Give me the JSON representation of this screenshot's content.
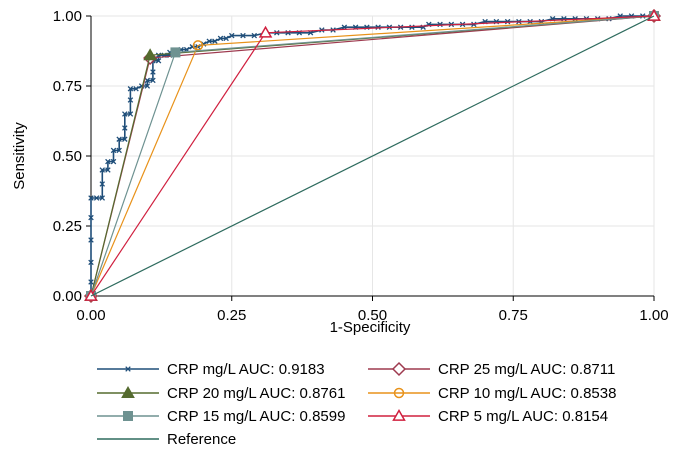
{
  "chart_data": {
    "type": "line",
    "xlabel": "1-Specificity",
    "ylabel": "Sensitivity",
    "xlim": [
      0,
      1
    ],
    "ylim": [
      0,
      1
    ],
    "xticks": [
      "0.00",
      "0.25",
      "0.50",
      "0.75",
      "1.00"
    ],
    "yticks": [
      "0.00",
      "0.25",
      "0.50",
      "0.75",
      "1.00"
    ],
    "grid": true,
    "legend_position": "bottom",
    "series": [
      {
        "name": "CRP mg/L AUC: 0.9183",
        "color": "#1f4e79",
        "marker": "x",
        "points": [
          [
            0,
            0
          ],
          [
            0,
            0.05
          ],
          [
            0,
            0.12
          ],
          [
            0,
            0.2
          ],
          [
            0,
            0.28
          ],
          [
            0,
            0.35
          ],
          [
            0.01,
            0.35
          ],
          [
            0.02,
            0.35
          ],
          [
            0.02,
            0.4
          ],
          [
            0.02,
            0.45
          ],
          [
            0.03,
            0.45
          ],
          [
            0.03,
            0.48
          ],
          [
            0.04,
            0.48
          ],
          [
            0.04,
            0.52
          ],
          [
            0.05,
            0.52
          ],
          [
            0.05,
            0.56
          ],
          [
            0.06,
            0.56
          ],
          [
            0.06,
            0.6
          ],
          [
            0.06,
            0.65
          ],
          [
            0.07,
            0.65
          ],
          [
            0.07,
            0.7
          ],
          [
            0.07,
            0.74
          ],
          [
            0.08,
            0.74
          ],
          [
            0.09,
            0.75
          ],
          [
            0.1,
            0.75
          ],
          [
            0.1,
            0.77
          ],
          [
            0.11,
            0.77
          ],
          [
            0.11,
            0.8
          ],
          [
            0.11,
            0.84
          ],
          [
            0.12,
            0.84
          ],
          [
            0.12,
            0.86
          ],
          [
            0.13,
            0.86
          ],
          [
            0.14,
            0.86
          ],
          [
            0.14,
            0.87
          ],
          [
            0.15,
            0.87
          ],
          [
            0.16,
            0.88
          ],
          [
            0.17,
            0.88
          ],
          [
            0.18,
            0.89
          ],
          [
            0.19,
            0.89
          ],
          [
            0.2,
            0.9
          ],
          [
            0.21,
            0.91
          ],
          [
            0.22,
            0.91
          ],
          [
            0.23,
            0.92
          ],
          [
            0.24,
            0.92
          ],
          [
            0.25,
            0.93
          ],
          [
            0.27,
            0.93
          ],
          [
            0.29,
            0.93
          ],
          [
            0.31,
            0.94
          ],
          [
            0.33,
            0.94
          ],
          [
            0.35,
            0.94
          ],
          [
            0.37,
            0.94
          ],
          [
            0.39,
            0.94
          ],
          [
            0.41,
            0.95
          ],
          [
            0.43,
            0.95
          ],
          [
            0.45,
            0.96
          ],
          [
            0.47,
            0.96
          ],
          [
            0.49,
            0.96
          ],
          [
            0.51,
            0.96
          ],
          [
            0.53,
            0.96
          ],
          [
            0.55,
            0.96
          ],
          [
            0.57,
            0.96
          ],
          [
            0.59,
            0.96
          ],
          [
            0.6,
            0.97
          ],
          [
            0.62,
            0.97
          ],
          [
            0.64,
            0.97
          ],
          [
            0.66,
            0.97
          ],
          [
            0.68,
            0.97
          ],
          [
            0.7,
            0.98
          ],
          [
            0.72,
            0.98
          ],
          [
            0.74,
            0.98
          ],
          [
            0.76,
            0.98
          ],
          [
            0.78,
            0.98
          ],
          [
            0.8,
            0.98
          ],
          [
            0.82,
            0.99
          ],
          [
            0.84,
            0.99
          ],
          [
            0.86,
            0.99
          ],
          [
            0.88,
            0.99
          ],
          [
            0.9,
            0.99
          ],
          [
            0.92,
            0.99
          ],
          [
            0.94,
            1
          ],
          [
            0.96,
            1
          ],
          [
            0.98,
            1
          ],
          [
            1,
            1
          ]
        ]
      },
      {
        "name": "CRP 25 mg/L AUC: 0.8711",
        "color": "#9e3a4f",
        "marker": "diamond-open",
        "points": [
          [
            0,
            0
          ],
          [
            0.105,
            0.85
          ],
          [
            1,
            1
          ]
        ]
      },
      {
        "name": "CRP 20 mg/L AUC: 0.8761",
        "color": "#556b2f",
        "marker": "triangle",
        "points": [
          [
            0,
            0
          ],
          [
            0.105,
            0.86
          ],
          [
            1,
            1
          ]
        ]
      },
      {
        "name": "CRP 10 mg/L AUC: 0.8538",
        "color": "#e8921a",
        "marker": "circle-open",
        "points": [
          [
            0,
            0
          ],
          [
            0.19,
            0.895
          ],
          [
            1,
            1
          ]
        ]
      },
      {
        "name": "CRP 15 mg/L AUC: 0.8599",
        "color": "#6e9291",
        "marker": "square",
        "points": [
          [
            0,
            0
          ],
          [
            0.15,
            0.87
          ],
          [
            1,
            1
          ]
        ]
      },
      {
        "name": "CRP 5 mg/L AUC: 0.8154",
        "color": "#d0203f",
        "marker": "triangle-open",
        "points": [
          [
            0,
            0
          ],
          [
            0.31,
            0.94
          ],
          [
            1,
            1
          ]
        ]
      },
      {
        "name": "Reference",
        "color": "#2e6b5e",
        "marker": "none",
        "points": [
          [
            0,
            0
          ],
          [
            1,
            1
          ]
        ]
      }
    ]
  }
}
